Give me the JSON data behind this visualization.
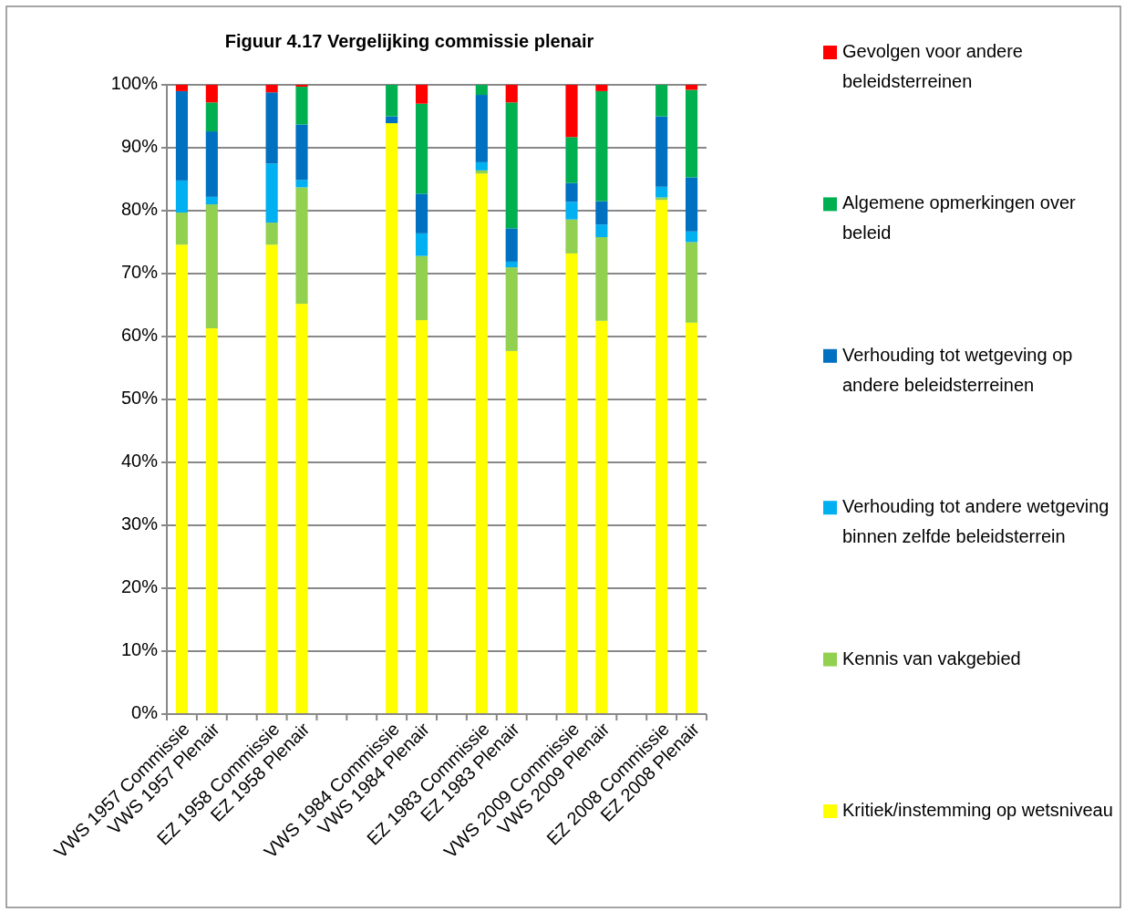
{
  "chart_data": {
    "type": "bar",
    "stacked": true,
    "title": "Figuur 4.17 Vergelijking commissie plenair",
    "categories": [
      "VWS 1957 Commissie",
      "VWS 1957 Plenair",
      null,
      "EZ 1958 Commissie",
      "EZ 1958 Plenair",
      null,
      null,
      "VWS 1984 Commissie",
      "VWS 1984 Plenair",
      null,
      "EZ 1983 Commissie",
      "EZ 1983 Plenair",
      null,
      "VWS 2009 Commissie",
      "VWS 2009 Plenair",
      null,
      "EZ 2008 Commissie",
      "EZ 2008 Plenair"
    ],
    "series": [
      {
        "name": "Kritiek/instemming op wetsniveau",
        "color": "#ffff00",
        "values": [
          74.6,
          61.3,
          null,
          74.6,
          65.2,
          null,
          null,
          93.9,
          62.6,
          null,
          85.9,
          57.7,
          null,
          73.2,
          62.5,
          null,
          81.7,
          62.2
        ]
      },
      {
        "name": "Kennis van vakgebied",
        "color": "#92d050",
        "values": [
          5.1,
          19.7,
          null,
          3.5,
          18.5,
          null,
          null,
          0,
          10.2,
          null,
          0.5,
          13.3,
          null,
          5.4,
          13.3,
          null,
          0.4,
          12.8
        ]
      },
      {
        "name": "Verhouding tot andere wetgeving binnen zelfde beleidsterrein",
        "color": "#00b0f0",
        "values": [
          5.1,
          1.2,
          null,
          9.4,
          1.2,
          null,
          null,
          0,
          3.6,
          null,
          1.3,
          0.9,
          null,
          2.8,
          2.0,
          null,
          1.7,
          1.7
        ]
      },
      {
        "name": "Verhouding tot wetgeving op andere beleidsterreinen",
        "color": "#0070c0",
        "values": [
          14.2,
          10.4,
          null,
          11.3,
          8.8,
          null,
          null,
          1.1,
          6.3,
          null,
          10.7,
          5.3,
          null,
          3.0,
          3.7,
          null,
          11.2,
          8.6
        ]
      },
      {
        "name": "Algemene opmerkingen over beleid",
        "color": "#00b050",
        "values": [
          0,
          4.6,
          null,
          0,
          6.0,
          null,
          null,
          5.0,
          14.3,
          null,
          1.6,
          20.0,
          null,
          7.3,
          17.5,
          null,
          5.0,
          13.9
        ]
      },
      {
        "name": "Gevolgen voor andere beleidsterreinen",
        "color": "#ff0000",
        "values": [
          1.0,
          2.8,
          null,
          1.2,
          0.3,
          null,
          null,
          0,
          3.0,
          null,
          0,
          2.8,
          null,
          8.3,
          1.0,
          null,
          0,
          0.8
        ]
      }
    ],
    "ylim": [
      0,
      100
    ],
    "yticks": [
      {
        "value": 0,
        "label": "0%"
      },
      {
        "value": 10,
        "label": "10%"
      },
      {
        "value": 20,
        "label": "20%"
      },
      {
        "value": 30,
        "label": "30%"
      },
      {
        "value": 40,
        "label": "40%"
      },
      {
        "value": 50,
        "label": "50%"
      },
      {
        "value": 60,
        "label": "60%"
      },
      {
        "value": 70,
        "label": "70%"
      },
      {
        "value": 80,
        "label": "80%"
      },
      {
        "value": 90,
        "label": "90%"
      },
      {
        "value": 100,
        "label": "100%"
      }
    ],
    "grid": "y",
    "legend": "right"
  }
}
